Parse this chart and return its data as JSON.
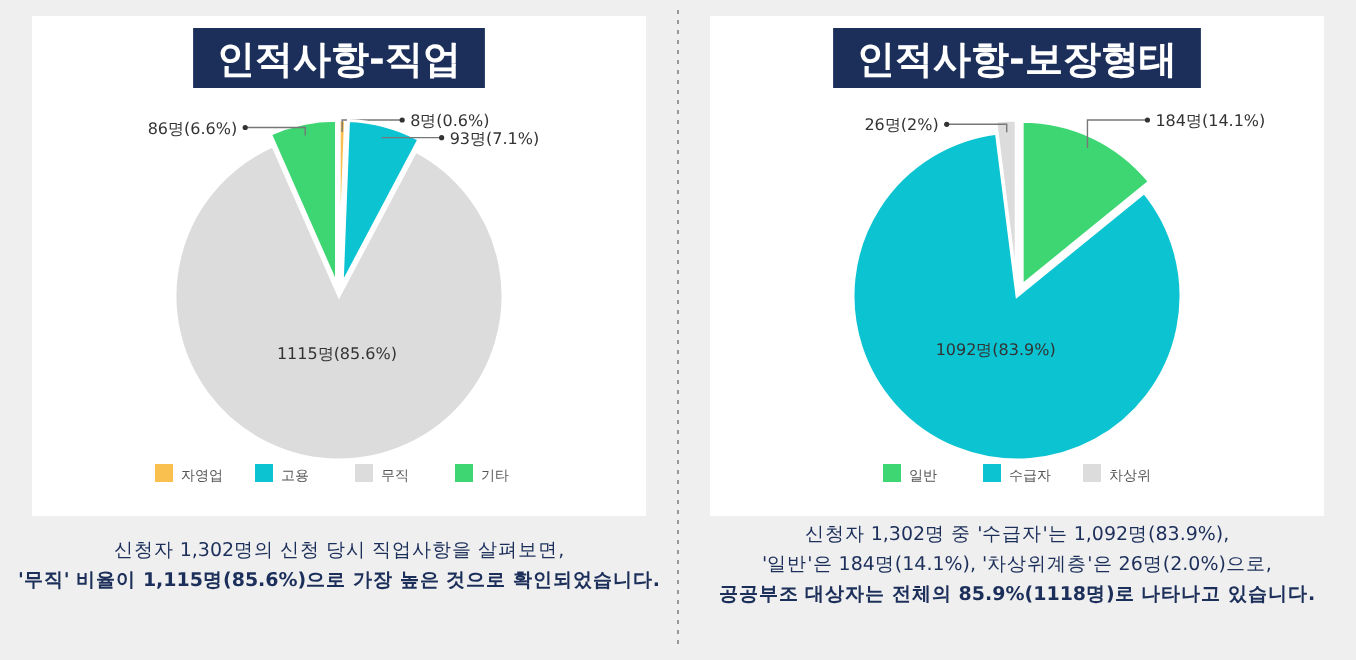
{
  "chart_data": [
    {
      "type": "pie",
      "title": "인적사항-직업",
      "categories": [
        "자영업",
        "고용",
        "무직",
        "기타"
      ],
      "values": [
        8,
        93,
        1115,
        86
      ],
      "colors": [
        "#f9bf4f",
        "#0bc3d1",
        "#dcdcdc",
        "#3dd672"
      ],
      "value_labels": [
        "8명(0.6%)",
        "93명(7.1%)",
        "1115명(85.6%)",
        "86명(6.6%)"
      ],
      "legend": "bottom",
      "annotations": [
        "신청자 1,302명의 신청 당시 직업사항을 살펴보면,",
        "'무직' 비율이 1,115명(85.6%)으로 가장 높은 것으로 확인되었습니다."
      ]
    },
    {
      "type": "pie",
      "title": "인적사항-보장형태",
      "categories": [
        "일반",
        "수급자",
        "차상위"
      ],
      "values": [
        184,
        1092,
        26
      ],
      "colors": [
        "#3dd672",
        "#0bc3d1",
        "#dcdcdc"
      ],
      "value_labels": [
        "184명(14.1%)",
        "1092명(83.9%)",
        "26명(2%)"
      ],
      "legend": "bottom",
      "annotations": [
        "신청자 1,302명 중 '수급자'는 1,092명(83.9%),",
        "'일반'은 184명(14.1%), '차상위계층'은 26명(2.0%)으로,",
        "공공부조 대상자는 전체의 85.9%(1118명)로 나타나고 있습니다."
      ]
    }
  ]
}
